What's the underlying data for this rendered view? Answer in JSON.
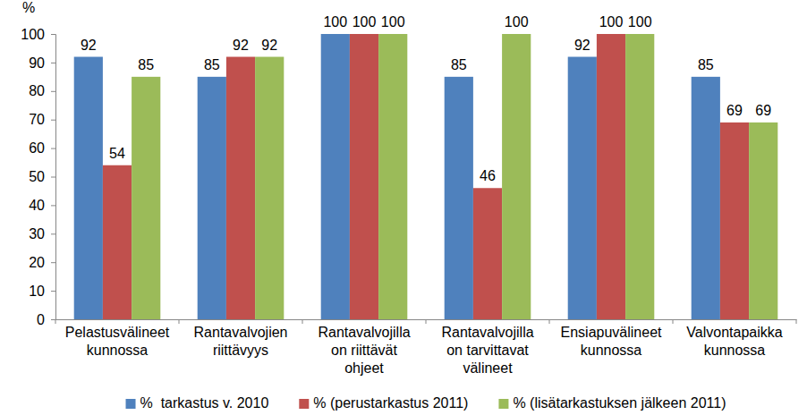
{
  "chart_data": {
    "type": "bar",
    "y_label": "%",
    "categories": [
      "Pelastusvälineet kunnossa",
      "Rantavalvojien riittävyys",
      "Rantavalvojilla on riittävät ohjeet",
      "Rantavalvojilla on tarvittavat välineet",
      "Ensiapuvälineet kunnossa",
      "Valvontapaikka kunnossa"
    ],
    "series": [
      {
        "name": "%  tarkastus v. 2010",
        "color": "#4f81bd",
        "values": [
          92,
          85,
          100,
          85,
          92,
          85
        ]
      },
      {
        "name": "% (perustarkastus 2011)",
        "color": "#c0504d",
        "values": [
          54,
          92,
          100,
          46,
          100,
          69
        ]
      },
      {
        "name": "% (lisätarkastuksen jälkeen 2011)",
        "color": "#9bbb59",
        "values": [
          85,
          92,
          100,
          100,
          100,
          69
        ]
      }
    ],
    "ylim": [
      0,
      100
    ],
    "yticks": [
      0,
      10,
      20,
      30,
      40,
      50,
      60,
      70,
      80,
      90,
      100
    ],
    "grid": false,
    "legend": "bottom",
    "data_labels": true
  }
}
